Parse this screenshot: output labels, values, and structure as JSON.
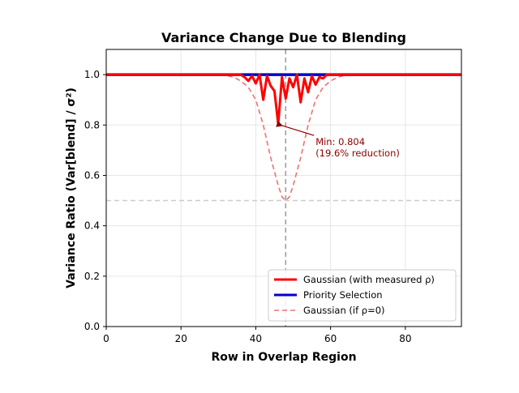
{
  "chart_data": {
    "type": "line",
    "title": "Variance Change Due to Blending",
    "xlabel": "Row in Overlap Region",
    "ylabel": "Variance Ratio (Var[blend] / σ²)",
    "xlim": [
      0,
      95
    ],
    "ylim": [
      0.0,
      1.1
    ],
    "xticks": [
      0,
      20,
      40,
      60,
      80
    ],
    "yticks": [
      0.0,
      0.2,
      0.4,
      0.6,
      0.8,
      1.0
    ],
    "grid": true,
    "legend_position": "lower-right",
    "reference_lines": [
      {
        "orientation": "vertical",
        "x": 48,
        "color": "#999999",
        "style": "dashed"
      },
      {
        "orientation": "horizontal",
        "y": 0.5,
        "color": "#cccccc",
        "style": "dashed"
      }
    ],
    "series": [
      {
        "name": "Gaussian (with measured ρ)",
        "color": "#ff0000",
        "style": "solid",
        "x": [
          0,
          36,
          37,
          38,
          39,
          40,
          41,
          42,
          43,
          44,
          45,
          46,
          47,
          48,
          49,
          50,
          51,
          52,
          53,
          54,
          55,
          56,
          57,
          58,
          59,
          60,
          95
        ],
        "y": [
          1.0,
          1.0,
          0.99,
          0.975,
          0.995,
          0.965,
          1.0,
          0.9,
          0.995,
          0.955,
          0.935,
          0.804,
          0.99,
          0.905,
          0.985,
          0.95,
          1.0,
          0.89,
          0.985,
          0.93,
          0.995,
          0.96,
          0.99,
          0.985,
          1.0,
          1.0,
          1.0
        ]
      },
      {
        "name": "Priority Selection",
        "color": "#0000cc",
        "style": "solid",
        "x": [
          0,
          95
        ],
        "y": [
          1.0,
          1.0
        ]
      },
      {
        "name": "Gaussian (if ρ=0)",
        "color": "#f07070",
        "style": "dashed",
        "x": [
          0,
          30,
          32,
          34,
          36,
          38,
          40,
          42,
          44,
          46,
          47,
          48,
          49,
          50,
          52,
          54,
          56,
          58,
          60,
          62,
          64,
          66,
          95
        ],
        "y": [
          1.0,
          1.0,
          0.997,
          0.99,
          0.975,
          0.95,
          0.9,
          0.8,
          0.67,
          0.56,
          0.515,
          0.5,
          0.515,
          0.56,
          0.67,
          0.8,
          0.9,
          0.95,
          0.975,
          0.99,
          0.997,
          1.0,
          1.0
        ]
      }
    ],
    "annotations": [
      {
        "lines": [
          "Min: 0.804",
          "(19.6% reduction)"
        ],
        "point_x": 46,
        "point_y": 0.804,
        "text_x": 56,
        "text_y": 0.72
      }
    ]
  }
}
